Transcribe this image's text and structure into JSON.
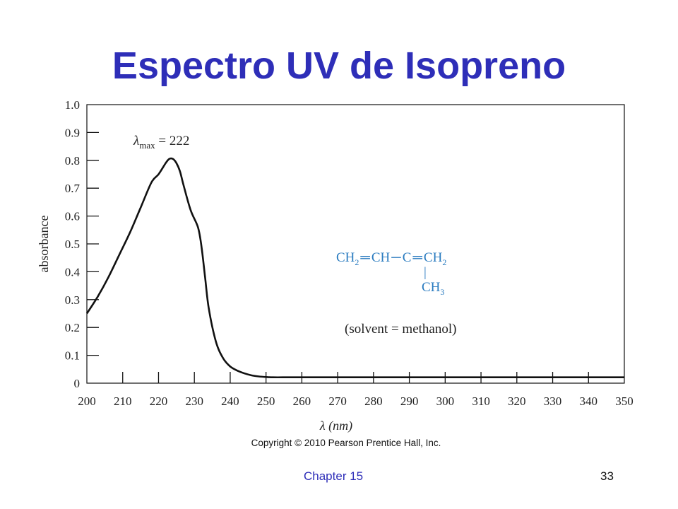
{
  "slide": {
    "title": "Espectro UV de Isopreno",
    "copyright": "Copyright © 2010 Pearson Prentice Hall, Inc.",
    "chapter": "Chapter 15",
    "page_number": "33"
  },
  "colors": {
    "title": "#2e2eb8",
    "structure": "#2b7cc0",
    "curve": "#111111",
    "footer_chapter": "#2e2eb8"
  },
  "chart_data": {
    "type": "line",
    "title": "",
    "xlabel": "λ (nm)",
    "ylabel": "absorbance",
    "xlim": [
      200,
      350
    ],
    "ylim": [
      0,
      1.0
    ],
    "grid": false,
    "x_ticks": [
      "200",
      "210",
      "220",
      "230",
      "240",
      "250",
      "260",
      "270",
      "280",
      "290",
      "300",
      "310",
      "320",
      "330",
      "340",
      "350"
    ],
    "y_ticks": [
      "0",
      "0.1",
      "0.2",
      "0.3",
      "0.4",
      "0.5",
      "0.6",
      "0.7",
      "0.8",
      "0.9",
      "1.0"
    ],
    "series": [
      {
        "x": [
          200,
          203,
          206,
          209,
          212,
          215,
          218,
          220,
          222,
          223,
          224,
          225,
          226,
          227,
          229,
          231,
          232,
          233,
          234,
          236,
          238,
          240,
          242,
          244,
          246,
          248,
          250,
          252,
          256,
          260,
          270,
          280,
          290,
          300,
          310,
          320,
          330,
          340,
          350
        ],
        "y": [
          0.25,
          0.31,
          0.38,
          0.46,
          0.54,
          0.63,
          0.72,
          0.75,
          0.79,
          0.805,
          0.805,
          0.79,
          0.76,
          0.71,
          0.62,
          0.56,
          0.49,
          0.38,
          0.27,
          0.15,
          0.09,
          0.06,
          0.045,
          0.035,
          0.028,
          0.024,
          0.022,
          0.021,
          0.021,
          0.021,
          0.021,
          0.021,
          0.021,
          0.021,
          0.021,
          0.021,
          0.021,
          0.021,
          0.021
        ]
      }
    ],
    "annotations": {
      "lambda_max": {
        "symbol": "λ",
        "subscript": "max",
        "rest": " = 222"
      },
      "structure": {
        "ch2_a": "CH",
        "sub2_a": "2",
        "bond_a": "═",
        "ch": "CH",
        "bond_b": "─",
        "c": "C",
        "bond_c": "═",
        "ch2_b": "CH",
        "sub2_b": "2",
        "vbar": "|",
        "ch3": "CH",
        "sub3": "3"
      },
      "solvent": "(solvent = methanol)"
    }
  }
}
